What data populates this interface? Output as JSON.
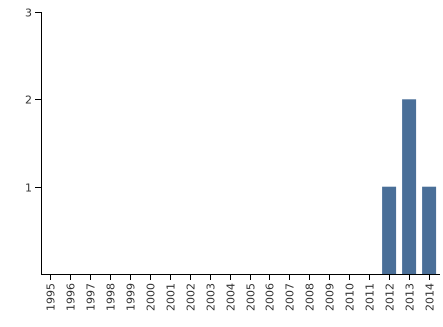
{
  "chart_data": {
    "type": "bar",
    "categories": [
      "1995",
      "1996",
      "1997",
      "1998",
      "1999",
      "2000",
      "2001",
      "2002",
      "2003",
      "2004",
      "2005",
      "2006",
      "2007",
      "2008",
      "2009",
      "2010",
      "2011",
      "2012",
      "2013",
      "2014"
    ],
    "values": [
      0,
      0,
      0,
      0,
      0,
      0,
      0,
      0,
      0,
      0,
      0,
      0,
      0,
      0,
      0,
      0,
      0,
      1,
      2,
      1
    ],
    "title": "",
    "xlabel": "",
    "ylabel": "",
    "ylim": [
      0,
      3
    ],
    "yticks": [
      1,
      2,
      3
    ],
    "grid": false,
    "legend": "none",
    "bar_color": "#4a6f98",
    "axis_color": "#000000",
    "tick_label_color": "#333333"
  }
}
